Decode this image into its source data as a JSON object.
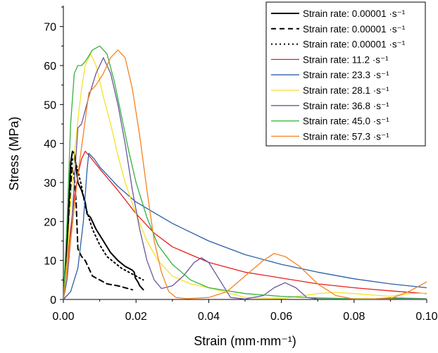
{
  "chart_data": {
    "type": "line",
    "xlabel": "Strain (mm·mm⁻¹)",
    "ylabel": "Stress (MPa)",
    "xlim": [
      0,
      0.1
    ],
    "ylim": [
      0,
      75
    ],
    "x_ticks": [
      "0.00",
      "0.02",
      "0.04",
      "0.06",
      "0.08",
      "0.10"
    ],
    "y_ticks": [
      "0",
      "10",
      "20",
      "30",
      "40",
      "50",
      "60",
      "70"
    ],
    "grid": false,
    "legend_position": "top-right",
    "series": [
      {
        "name": "Strain rate: 0.00001 ·s⁻¹",
        "color": "#000000",
        "dash": "solid",
        "points": [
          [
            0,
            0
          ],
          [
            0.0005,
            8
          ],
          [
            0.001,
            14
          ],
          [
            0.0015,
            24
          ],
          [
            0.002,
            35
          ],
          [
            0.0025,
            38
          ],
          [
            0.003,
            37.5
          ],
          [
            0.0035,
            34
          ],
          [
            0.004,
            30
          ],
          [
            0.005,
            28
          ],
          [
            0.006,
            25
          ],
          [
            0.0065,
            22
          ],
          [
            0.0075,
            21
          ],
          [
            0.009,
            18
          ],
          [
            0.011,
            15
          ],
          [
            0.013,
            12
          ],
          [
            0.015,
            10
          ],
          [
            0.017,
            8.5
          ],
          [
            0.019,
            7.5
          ],
          [
            0.0195,
            7
          ],
          [
            0.0198,
            5.5
          ],
          [
            0.0205,
            4.5
          ],
          [
            0.021,
            3.5
          ],
          [
            0.022,
            2.5
          ]
        ]
      },
      {
        "name": "Strain rate: 0.00001 ·s⁻¹",
        "color": "#000000",
        "dash": "dashed",
        "points": [
          [
            0,
            0
          ],
          [
            0.0005,
            6
          ],
          [
            0.0012,
            15
          ],
          [
            0.0018,
            26
          ],
          [
            0.0022,
            32
          ],
          [
            0.0025,
            34
          ],
          [
            0.003,
            31
          ],
          [
            0.0035,
            25
          ],
          [
            0.004,
            13
          ],
          [
            0.005,
            11
          ],
          [
            0.006,
            10
          ],
          [
            0.008,
            6
          ],
          [
            0.01,
            5
          ],
          [
            0.012,
            4
          ],
          [
            0.015,
            3.5
          ],
          [
            0.017,
            3
          ],
          [
            0.019,
            2.5
          ]
        ]
      },
      {
        "name": "Strain rate: 0.00001 ·s⁻¹",
        "color": "#000000",
        "dash": "dotted",
        "points": [
          [
            0,
            0
          ],
          [
            0.0005,
            7
          ],
          [
            0.001,
            14
          ],
          [
            0.0015,
            24
          ],
          [
            0.002,
            32
          ],
          [
            0.0025,
            36
          ],
          [
            0.003,
            36.5
          ],
          [
            0.004,
            33
          ],
          [
            0.005,
            29
          ],
          [
            0.006,
            24
          ],
          [
            0.008,
            18
          ],
          [
            0.01,
            14
          ],
          [
            0.012,
            11
          ],
          [
            0.014,
            9.5
          ],
          [
            0.016,
            8
          ],
          [
            0.018,
            7
          ],
          [
            0.02,
            6
          ],
          [
            0.022,
            5
          ]
        ]
      },
      {
        "name": "Strain rate: 11.2 ·s⁻¹",
        "color": "#e8201e",
        "dash": "solid",
        "points": [
          [
            0,
            0
          ],
          [
            0.001,
            9
          ],
          [
            0.002,
            18
          ],
          [
            0.003,
            26
          ],
          [
            0.004,
            32
          ],
          [
            0.005,
            36
          ],
          [
            0.006,
            38
          ],
          [
            0.007,
            37
          ],
          [
            0.01,
            33.5
          ],
          [
            0.015,
            28
          ],
          [
            0.02,
            22
          ],
          [
            0.025,
            17
          ],
          [
            0.03,
            13.5
          ],
          [
            0.04,
            9.5
          ],
          [
            0.05,
            7
          ],
          [
            0.06,
            5.5
          ],
          [
            0.07,
            4
          ],
          [
            0.08,
            3
          ],
          [
            0.09,
            2.2
          ],
          [
            0.1,
            1.5
          ]
        ]
      },
      {
        "name": "Strain rate: 23.3 ·s⁻¹",
        "color": "#2960a8",
        "dash": "solid",
        "points": [
          [
            0,
            0
          ],
          [
            0.002,
            2
          ],
          [
            0.004,
            8
          ],
          [
            0.0055,
            20
          ],
          [
            0.0065,
            33
          ],
          [
            0.007,
            37.5
          ],
          [
            0.0085,
            36
          ],
          [
            0.01,
            34
          ],
          [
            0.015,
            29
          ],
          [
            0.02,
            25
          ],
          [
            0.03,
            19.5
          ],
          [
            0.04,
            15
          ],
          [
            0.05,
            11.5
          ],
          [
            0.06,
            9
          ],
          [
            0.07,
            7
          ],
          [
            0.08,
            5.3
          ],
          [
            0.09,
            4
          ],
          [
            0.1,
            3
          ]
        ]
      },
      {
        "name": "Strain rate: 28.1 ·s⁻¹",
        "color": "#f5e12a",
        "dash": "solid",
        "points": [
          [
            0,
            0
          ],
          [
            0.001,
            10
          ],
          [
            0.002,
            25
          ],
          [
            0.003,
            37
          ],
          [
            0.004,
            46
          ],
          [
            0.005,
            54
          ],
          [
            0.006,
            60
          ],
          [
            0.0075,
            63
          ],
          [
            0.009,
            60
          ],
          [
            0.011,
            52
          ],
          [
            0.013,
            45
          ],
          [
            0.015,
            37
          ],
          [
            0.017,
            30
          ],
          [
            0.02,
            22
          ],
          [
            0.023,
            15
          ],
          [
            0.026,
            10
          ],
          [
            0.03,
            6
          ],
          [
            0.035,
            4
          ],
          [
            0.04,
            3
          ],
          [
            0.045,
            1.8
          ],
          [
            0.05,
            0.5
          ],
          [
            0.06,
            0.2
          ],
          [
            0.07,
            1.5
          ],
          [
            0.075,
            1.8
          ],
          [
            0.08,
            1.5
          ],
          [
            0.09,
            0.8
          ],
          [
            0.095,
            1.5
          ],
          [
            0.1,
            1.6
          ]
        ]
      },
      {
        "name": "Strain rate: 36.8 ·s⁻¹",
        "color": "#6a559e",
        "dash": "solid",
        "points": [
          [
            0,
            0
          ],
          [
            0.001,
            5
          ],
          [
            0.002,
            15
          ],
          [
            0.003,
            30
          ],
          [
            0.004,
            44
          ],
          [
            0.005,
            45
          ],
          [
            0.007,
            52
          ],
          [
            0.009,
            58
          ],
          [
            0.011,
            62
          ],
          [
            0.013,
            58
          ],
          [
            0.015,
            50
          ],
          [
            0.017,
            40
          ],
          [
            0.019,
            28
          ],
          [
            0.021,
            18
          ],
          [
            0.023,
            10
          ],
          [
            0.025,
            5
          ],
          [
            0.027,
            2.8
          ],
          [
            0.03,
            3.5
          ],
          [
            0.033,
            6
          ],
          [
            0.036,
            9.5
          ],
          [
            0.038,
            10.7
          ],
          [
            0.04,
            9.5
          ],
          [
            0.043,
            5
          ],
          [
            0.046,
            0.5
          ],
          [
            0.05,
            0.1
          ],
          [
            0.055,
            1
          ],
          [
            0.058,
            3
          ],
          [
            0.061,
            4.3
          ],
          [
            0.064,
            3
          ],
          [
            0.067,
            0.5
          ],
          [
            0.07,
            0.1
          ],
          [
            0.085,
            0.1
          ],
          [
            0.09,
            0.4
          ],
          [
            0.1,
            0.2
          ]
        ]
      },
      {
        "name": "Strain rate: 45.0 ·s⁻¹",
        "color": "#35b13d",
        "dash": "solid",
        "points": [
          [
            0,
            0
          ],
          [
            0.001,
            20
          ],
          [
            0.002,
            45
          ],
          [
            0.003,
            58
          ],
          [
            0.004,
            60
          ],
          [
            0.005,
            60
          ],
          [
            0.006,
            61
          ],
          [
            0.008,
            64
          ],
          [
            0.01,
            65
          ],
          [
            0.012,
            63
          ],
          [
            0.014,
            56
          ],
          [
            0.016,
            47
          ],
          [
            0.018,
            38
          ],
          [
            0.02,
            30
          ],
          [
            0.023,
            21
          ],
          [
            0.026,
            14
          ],
          [
            0.03,
            9
          ],
          [
            0.035,
            5
          ],
          [
            0.04,
            3
          ],
          [
            0.05,
            1.5
          ],
          [
            0.06,
            0.8
          ],
          [
            0.07,
            0.4
          ],
          [
            0.08,
            0.2
          ],
          [
            0.1,
            0.1
          ]
        ]
      },
      {
        "name": "Strain rate: 57.3 ·s⁻¹",
        "color": "#f58220",
        "dash": "solid",
        "points": [
          [
            0,
            0
          ],
          [
            0.002,
            15
          ],
          [
            0.004,
            32
          ],
          [
            0.006,
            46
          ],
          [
            0.007,
            53
          ],
          [
            0.009,
            55
          ],
          [
            0.011,
            58
          ],
          [
            0.013,
            62
          ],
          [
            0.015,
            64
          ],
          [
            0.017,
            62
          ],
          [
            0.019,
            54
          ],
          [
            0.021,
            42
          ],
          [
            0.023,
            28
          ],
          [
            0.025,
            15
          ],
          [
            0.027,
            7
          ],
          [
            0.029,
            2
          ],
          [
            0.031,
            0.5
          ],
          [
            0.034,
            0.2
          ],
          [
            0.04,
            0.5
          ],
          [
            0.045,
            2
          ],
          [
            0.05,
            6
          ],
          [
            0.055,
            10
          ],
          [
            0.058,
            11.8
          ],
          [
            0.061,
            11
          ],
          [
            0.065,
            8.5
          ],
          [
            0.07,
            4
          ],
          [
            0.075,
            1
          ],
          [
            0.08,
            0.1
          ],
          [
            0.09,
            0.2
          ],
          [
            0.095,
            2
          ],
          [
            0.1,
            4.5
          ]
        ]
      }
    ]
  }
}
